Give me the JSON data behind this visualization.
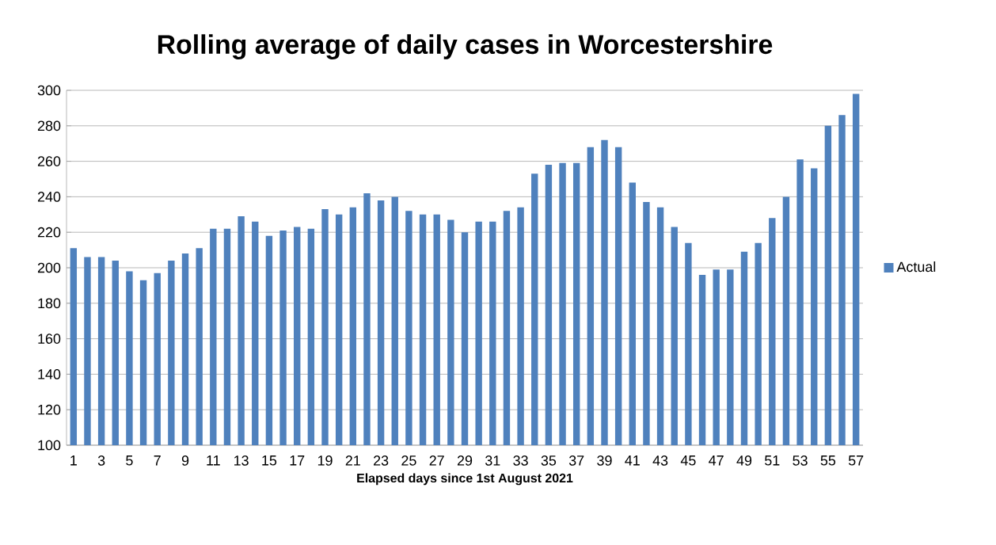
{
  "chart_data": {
    "type": "bar",
    "title": "Rolling average of daily cases in Worcestershire",
    "xlabel": "Elapsed days since 1st August 2021",
    "categories": [
      "1",
      null,
      "3",
      null,
      "5",
      null,
      "7",
      null,
      "9",
      null,
      "11",
      null,
      "13",
      null,
      "15",
      null,
      "17",
      null,
      "19",
      null,
      "21",
      null,
      "23",
      null,
      "25",
      null,
      "27",
      null,
      "29",
      null,
      "31",
      null,
      "33",
      null,
      "35",
      null,
      "37",
      null,
      "39",
      null,
      "41",
      null,
      "43",
      null,
      "45",
      null,
      "47",
      null,
      "49",
      null,
      "51",
      null,
      "53",
      null,
      "55",
      null,
      "57"
    ],
    "series": [
      {
        "name": "Actual",
        "color": "#4f81bd",
        "values": [
          211,
          206,
          206,
          204,
          198,
          193,
          197,
          204,
          208,
          211,
          222,
          222,
          229,
          226,
          218,
          221,
          223,
          222,
          233,
          230,
          234,
          242,
          238,
          240,
          232,
          230,
          230,
          227,
          220,
          226,
          226,
          232,
          234,
          253,
          258,
          259,
          259,
          268,
          272,
          268,
          248,
          237,
          234,
          223,
          214,
          196,
          199,
          199,
          209,
          214,
          228,
          240,
          261,
          256,
          280,
          286,
          298
        ]
      }
    ],
    "ylim": [
      100,
      300
    ],
    "yticks": [
      100,
      120,
      140,
      160,
      180,
      200,
      220,
      240,
      260,
      280,
      300
    ],
    "grid": "y",
    "legend": "right"
  }
}
